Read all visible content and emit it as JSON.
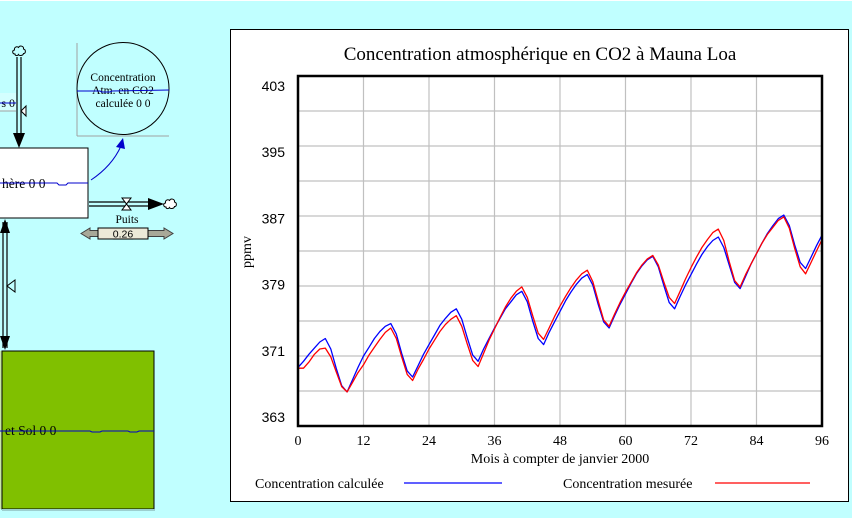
{
  "colors": {
    "background": "#C0FFFF",
    "calculated": "#0000FF",
    "measured": "#FF0000",
    "soil_stock": "#80C000",
    "slider_arrow": "#A8A898",
    "slider_box": "#ECE9D8"
  },
  "diagram": {
    "inflow_label": "s 0",
    "auxiliary": {
      "line1": "Concentration",
      "line2": "Atm. en CO2",
      "line3": "calculée 0 0"
    },
    "stock_atmosphere_label": "hère 0 0",
    "outflow": {
      "label": "Puits",
      "slider_value": "0.26"
    },
    "stock_soil_label": "et Sol 0 0"
  },
  "chart_data": {
    "type": "line",
    "title": "Concentration atmosphérique en CO2 à Mauna Loa",
    "xlabel": "Mois à compter de janvier 2000",
    "ylabel": "ppmv",
    "xlim": [
      0,
      96
    ],
    "ylim": [
      363,
      403
    ],
    "x_ticks": [
      0,
      12,
      24,
      36,
      48,
      60,
      72,
      84,
      96
    ],
    "y_ticks": [
      403,
      395,
      387,
      379,
      371,
      363
    ],
    "x_grid_step": 12,
    "y_grid_step": 4,
    "grid": true,
    "legend": "bottom",
    "x": [
      0,
      1,
      2,
      3,
      4,
      5,
      6,
      7,
      8,
      9,
      10,
      11,
      12,
      13,
      14,
      15,
      16,
      17,
      18,
      19,
      20,
      21,
      22,
      23,
      24,
      25,
      26,
      27,
      28,
      29,
      30,
      31,
      32,
      33,
      34,
      35,
      36,
      37,
      38,
      39,
      40,
      41,
      42,
      43,
      44,
      45,
      46,
      47,
      48,
      49,
      50,
      51,
      52,
      53,
      54,
      55,
      56,
      57,
      58,
      59,
      60,
      61,
      62,
      63,
      64,
      65,
      66,
      67,
      68,
      69,
      70,
      71,
      72,
      73,
      74,
      75,
      76,
      77,
      78,
      79,
      80,
      81,
      82,
      83,
      84,
      85,
      86,
      87,
      88,
      89,
      90,
      91,
      92,
      93,
      94,
      95,
      96
    ],
    "series": [
      {
        "name": "Concentration calculée",
        "color": "#0000FF",
        "values": [
          369.7,
          370.4,
          371.2,
          371.9,
          372.6,
          373.0,
          371.8,
          369.6,
          367.6,
          366.9,
          368.3,
          369.7,
          371.0,
          372.0,
          373.0,
          373.8,
          374.4,
          374.7,
          373.5,
          371.3,
          369.3,
          368.6,
          369.9,
          371.2,
          372.3,
          373.4,
          374.5,
          375.3,
          376.0,
          376.4,
          375.2,
          373.1,
          371.1,
          370.4,
          371.8,
          373.0,
          374.2,
          375.3,
          376.4,
          377.2,
          378.0,
          378.4,
          377.2,
          375.0,
          373.0,
          372.3,
          373.7,
          374.9,
          376.1,
          377.3,
          378.3,
          379.2,
          379.9,
          380.3,
          379.1,
          376.9,
          374.9,
          374.2,
          375.6,
          376.9,
          378.1,
          379.3,
          380.4,
          381.3,
          382.0,
          382.4,
          381.2,
          379.1,
          377.1,
          376.4,
          377.8,
          379.1,
          380.3,
          381.5,
          382.6,
          383.5,
          384.2,
          384.6,
          383.4,
          381.4,
          379.4,
          378.7,
          380.1,
          381.5,
          382.7,
          383.9,
          385.0,
          385.9,
          386.7,
          387.1,
          385.9,
          383.7,
          381.7,
          381.0,
          382.3,
          383.6,
          384.8
        ]
      },
      {
        "name": "Concentration mesurée",
        "color": "#FF0000",
        "values": [
          369.6,
          369.6,
          370.3,
          371.2,
          371.8,
          371.9,
          370.9,
          369.2,
          367.5,
          366.9,
          368.0,
          369.1,
          370.0,
          371.1,
          372.0,
          372.9,
          373.7,
          374.2,
          373.0,
          370.9,
          368.9,
          368.2,
          369.5,
          370.6,
          371.8,
          372.8,
          373.8,
          374.6,
          375.2,
          375.6,
          374.4,
          372.4,
          370.5,
          369.8,
          371.3,
          372.8,
          374.1,
          375.4,
          376.6,
          377.6,
          378.4,
          378.9,
          377.7,
          375.6,
          373.6,
          372.9,
          374.2,
          375.5,
          376.7,
          377.8,
          378.8,
          379.7,
          380.4,
          380.8,
          379.5,
          377.3,
          375.1,
          374.4,
          375.8,
          377.1,
          378.3,
          379.4,
          380.5,
          381.4,
          382.1,
          382.5,
          381.4,
          379.5,
          377.7,
          377.0,
          378.4,
          379.8,
          381.1,
          382.3,
          383.4,
          384.3,
          385.1,
          385.5,
          384.2,
          381.8,
          379.6,
          378.9,
          380.3,
          381.5,
          382.7,
          383.9,
          384.9,
          385.7,
          386.5,
          386.9,
          385.6,
          383.3,
          381.2,
          380.4,
          381.7,
          383.0,
          384.3
        ]
      }
    ]
  }
}
